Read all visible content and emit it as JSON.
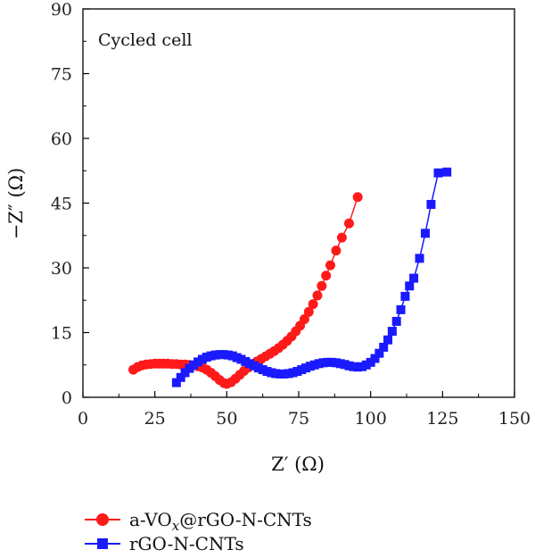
{
  "chart_data": {
    "type": "scatter",
    "title": "",
    "annotation": "Cycled cell",
    "xlabel": "Z′ (Ω)",
    "ylabel": "−Z″ (Ω)",
    "xlim": [
      0,
      150
    ],
    "ylim": [
      0,
      90
    ],
    "x_ticks": [
      0,
      25,
      50,
      75,
      100,
      125,
      150
    ],
    "y_ticks": [
      0,
      15,
      30,
      45,
      60,
      75,
      90
    ],
    "grid": false,
    "legend_position": "bottom-left, below plot",
    "series": [
      {
        "name": "a-VOx@rGO-N-CNTs",
        "legend_parts": [
          "a-VO",
          "x",
          "@rGO-N-CNTs"
        ],
        "color": "#ff1a1a",
        "marker": "circle",
        "x": [
          17.5,
          19,
          20.5,
          22,
          23.5,
          25,
          26.5,
          28,
          29.5,
          31,
          32.5,
          34,
          35.5,
          37,
          38.5,
          40,
          41.5,
          43,
          44.5,
          46,
          47.5,
          49,
          50,
          51.5,
          53,
          54.5,
          56,
          57.5,
          59,
          60.5,
          62,
          63.5,
          65,
          66.5,
          68,
          69.5,
          71,
          72.5,
          74,
          75.5,
          77,
          78.5,
          80,
          81.5,
          83,
          84.5,
          86,
          88,
          90,
          92.5,
          95.5
        ],
        "y": [
          6.4,
          7.0,
          7.4,
          7.6,
          7.7,
          7.8,
          7.8,
          7.8,
          7.8,
          7.7,
          7.7,
          7.6,
          7.6,
          7.5,
          7.4,
          7.2,
          6.9,
          6.4,
          5.7,
          4.9,
          4.0,
          3.3,
          3.1,
          3.5,
          4.3,
          5.2,
          6.1,
          6.9,
          7.6,
          8.3,
          8.9,
          9.5,
          10.1,
          10.7,
          11.4,
          12.2,
          13.1,
          14.1,
          15.3,
          16.6,
          18.1,
          19.8,
          21.6,
          23.6,
          25.8,
          28.2,
          30.6,
          34.0,
          37.0,
          40.3,
          46.4
        ]
      },
      {
        "name": "rGO-N-CNTs",
        "color": "#1a1aff",
        "marker": "square",
        "x": [
          32.5,
          34,
          35.5,
          37,
          38.5,
          40,
          41.5,
          43,
          44.5,
          46,
          47.5,
          49,
          50.5,
          52,
          53.5,
          55,
          56.5,
          58,
          59.5,
          61,
          62.5,
          64,
          65.5,
          67,
          68.5,
          70,
          71.5,
          73,
          74.5,
          76,
          77.5,
          79,
          80.5,
          82,
          83.5,
          85,
          86.5,
          88,
          89.5,
          91,
          92.5,
          94,
          95.5,
          97,
          98.5,
          100,
          101.5,
          103,
          104.5,
          106,
          107.5,
          109,
          110.5,
          112,
          113.5,
          115,
          117,
          119,
          121,
          123.5,
          126.5
        ],
        "y": [
          3.4,
          4.6,
          5.7,
          6.7,
          7.5,
          8.2,
          8.8,
          9.3,
          9.6,
          9.8,
          9.9,
          9.9,
          9.8,
          9.6,
          9.2,
          8.8,
          8.3,
          7.8,
          7.3,
          6.8,
          6.4,
          6.0,
          5.7,
          5.5,
          5.4,
          5.4,
          5.5,
          5.7,
          6.0,
          6.4,
          6.8,
          7.2,
          7.5,
          7.8,
          8.0,
          8.1,
          8.1,
          8.0,
          7.8,
          7.6,
          7.3,
          7.1,
          7.0,
          7.1,
          7.5,
          8.1,
          9.0,
          10.2,
          11.6,
          13.3,
          15.3,
          17.6,
          20.3,
          23.4,
          25.8,
          27.6,
          32.2,
          38.0,
          44.7,
          52.0,
          52.2
        ]
      }
    ]
  }
}
